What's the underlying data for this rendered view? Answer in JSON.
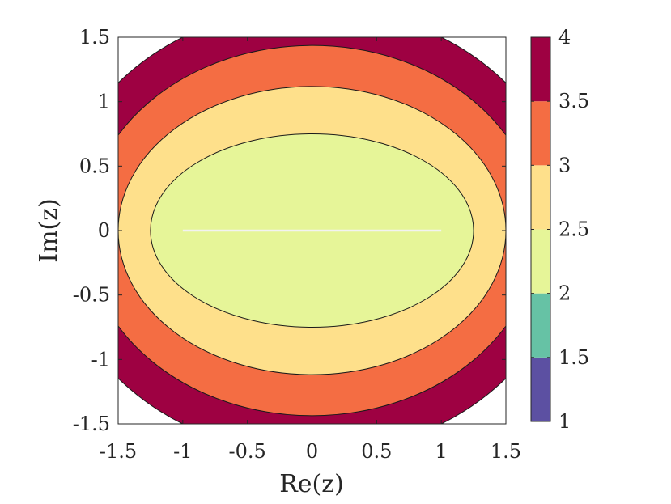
{
  "chart_data": {
    "type": "contour",
    "xlabel": "Re(z)",
    "ylabel": "Im(z)",
    "xlim": [
      -1.5,
      1.5
    ],
    "ylim": [
      -1.5,
      1.5
    ],
    "xticks": [
      -1.5,
      -1,
      -0.5,
      0,
      0.5,
      1,
      1.5
    ],
    "xtick_labels": [
      "-1.5",
      "-1",
      "-0.5",
      "0",
      "0.5",
      "1",
      "1.5"
    ],
    "yticks": [
      -1.5,
      -1,
      -0.5,
      0,
      0.5,
      1,
      1.5
    ],
    "ytick_labels": [
      "-1.5",
      "-1",
      "-0.5",
      "0",
      "0.5",
      "1",
      "1.5"
    ],
    "function": "|z - 1| + |z + 1|",
    "levels": [
      1.5,
      2,
      2.5,
      3,
      3.5
    ],
    "bands": [
      {
        "range": [
          1,
          1.5
        ],
        "color": "#5c50a2"
      },
      {
        "range": [
          1.5,
          2
        ],
        "color": "#66c2a5"
      },
      {
        "range": [
          2,
          2.5
        ],
        "color": "#e6f598"
      },
      {
        "range": [
          2.5,
          3
        ],
        "color": "#fee08b"
      },
      {
        "range": [
          3,
          3.5
        ],
        "color": "#f46d43"
      },
      {
        "range": [
          3.5,
          4
        ],
        "color": "#9e0142"
      }
    ],
    "segment": {
      "x": [
        -1,
        1
      ],
      "y": [
        0,
        0
      ],
      "color": "#f2f2f2"
    },
    "colorbar": {
      "limits": [
        1,
        4
      ],
      "ticks": [
        1,
        1.5,
        2,
        2.5,
        3,
        3.5,
        4
      ],
      "tick_labels": [
        "1",
        "1.5",
        "2",
        "2.5",
        "3",
        "3.5",
        "4"
      ]
    },
    "grid": false
  }
}
